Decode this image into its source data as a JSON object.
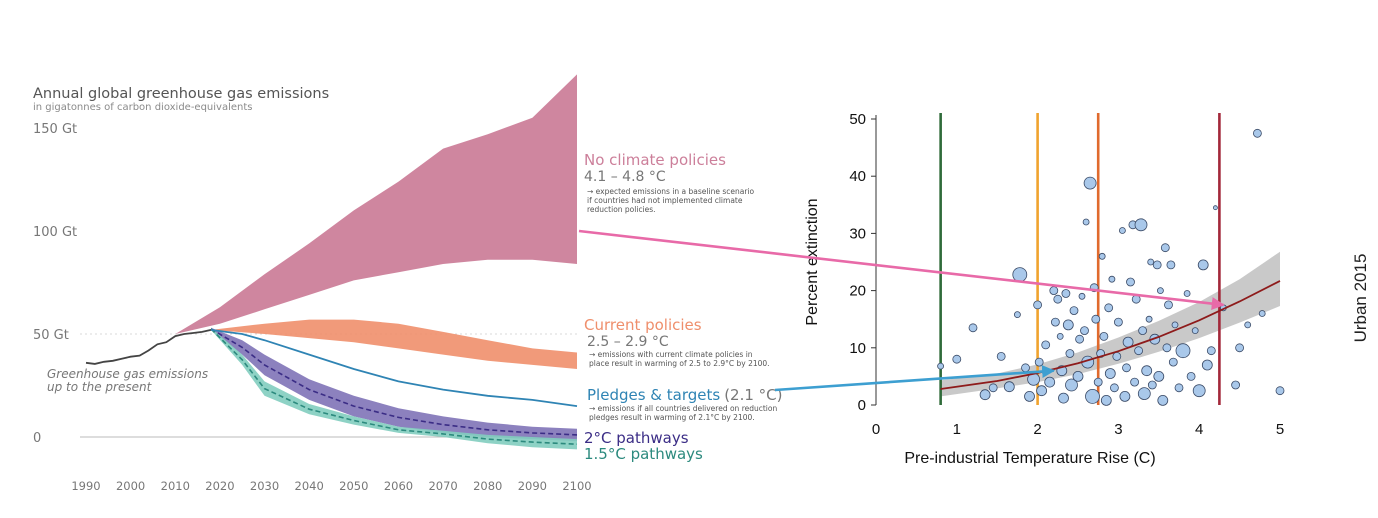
{
  "colors": {
    "no_policy": "#cc7f9a",
    "current": "#ef8f6c",
    "pledges": "#2f84b4",
    "two_c": "#7f73b7",
    "two_c_line": "#3b2d86",
    "one_five": "#82cdbf",
    "one_five_line": "#2c8a7e",
    "history": "#444444",
    "arrow_pink": "#e86aa8",
    "arrow_blue": "#3d9fd1",
    "ext_curve": "#8e1b1b",
    "ext_band": "#bfbfbf",
    "marker_fill": "#a9c8ea",
    "marker_stroke": "#3a4a66",
    "vline_green": "#2f6b3a",
    "vline_orange": "#f0a32e",
    "vline_red_orange": "#e06a2d",
    "vline_dark_red": "#a3283a"
  },
  "chart_data": [
    {
      "type": "area",
      "title": "Annual global greenhouse gas emissions",
      "subtitle": "in gigatonnes of carbon dioxide-equivalents",
      "y_ticks": [
        {
          "value": 150,
          "label": "150 Gt"
        },
        {
          "value": 100,
          "label": "100 Gt"
        },
        {
          "value": 50,
          "label": "50 Gt"
        },
        {
          "value": 0,
          "label": "0"
        }
      ],
      "x_ticks": [
        "1990",
        "2000",
        "2010",
        "2020",
        "2030",
        "2040",
        "2050",
        "2060",
        "2070",
        "2080",
        "2090",
        "2100"
      ],
      "xlim": [
        1990,
        2100
      ],
      "ylim": [
        0,
        150
      ],
      "history": {
        "label_line1": "Greenhouse gas emissions",
        "label_line2": "up to the present",
        "x": [
          1990,
          1992,
          1994,
          1996,
          1998,
          2000,
          2002,
          2004,
          2006,
          2008,
          2010,
          2012,
          2014,
          2016,
          2018
        ],
        "y": [
          36,
          35.5,
          36.5,
          37,
          38,
          39,
          39.5,
          42,
          45,
          46,
          49,
          50,
          50.5,
          51,
          52
        ]
      },
      "bands": [
        {
          "key": "no_policy",
          "label": "No climate policies",
          "range": "4.1 – 4.8 °C",
          "note": [
            "→ expected emissions in a baseline scenario",
            "if countries had not implemented climate",
            "reduction policies."
          ],
          "x": [
            2010,
            2020,
            2030,
            2040,
            2050,
            2060,
            2070,
            2080,
            2090,
            2100
          ],
          "lower": [
            50,
            55,
            62,
            69,
            76,
            80,
            84,
            86,
            86,
            84
          ],
          "upper": [
            50,
            63,
            79,
            94,
            110,
            124,
            140,
            147,
            155,
            176
          ]
        },
        {
          "key": "current",
          "label": "Current policies",
          "range": "2.5 – 2.9 °C",
          "note": [
            "→ emissions with current climate policies in",
            "place result in warming of 2.5 to 2.9°C by 2100."
          ],
          "x": [
            2018,
            2030,
            2040,
            2050,
            2060,
            2070,
            2080,
            2090,
            2100
          ],
          "lower": [
            52,
            50,
            48,
            46,
            43,
            40,
            37,
            35,
            33
          ],
          "upper": [
            52,
            55,
            57,
            57,
            55,
            51,
            47,
            43,
            41
          ]
        },
        {
          "key": "two_c",
          "label": "2°C pathways",
          "x": [
            2018,
            2025,
            2030,
            2040,
            2050,
            2060,
            2070,
            2080,
            2090,
            2100
          ],
          "lower": [
            52,
            40,
            30,
            18,
            10,
            5,
            2,
            0,
            -1,
            -2
          ],
          "upper": [
            53,
            47,
            40,
            28,
            20,
            14,
            10,
            7,
            5,
            4
          ],
          "mid": [
            52.5,
            43.5,
            35,
            23,
            15,
            9.5,
            6,
            3.5,
            2,
            1
          ]
        },
        {
          "key": "one_five",
          "label": "1.5°C pathways",
          "x": [
            2018,
            2025,
            2030,
            2040,
            2050,
            2060,
            2070,
            2080,
            2090,
            2100
          ],
          "lower": [
            52,
            35,
            20,
            11,
            6,
            2,
            0,
            -3,
            -5,
            -6
          ],
          "upper": [
            53,
            40,
            27,
            16,
            10,
            5,
            3,
            1,
            0,
            -1
          ],
          "mid": [
            52.5,
            37.5,
            23.5,
            13.5,
            8,
            3.5,
            1.5,
            -1,
            -2.5,
            -3.5
          ]
        }
      ],
      "pledges": {
        "label": "Pledges & targets",
        "range": "(2.1 °C)",
        "note": [
          "→ emissions if all countries delivered on reduction",
          "pledges result in warming of 2.1°C by 2100."
        ],
        "x": [
          2018,
          2025,
          2030,
          2040,
          2050,
          2060,
          2070,
          2080,
          2090,
          2100
        ],
        "y": [
          52,
          50,
          47,
          40,
          33,
          27,
          23,
          20,
          18,
          15
        ]
      }
    },
    {
      "type": "scatter",
      "xlabel": "Pre-industrial Temperature Rise (C)",
      "ylabel": "Percent extinction",
      "xlim": [
        0,
        5
      ],
      "ylim": [
        0,
        50
      ],
      "x_ticks": [
        "0",
        "1",
        "2",
        "3",
        "4",
        "5"
      ],
      "y_ticks": [
        "0",
        "10",
        "20",
        "30",
        "40",
        "50"
      ],
      "vlines": [
        {
          "x": 0.8,
          "key": "vline_green"
        },
        {
          "x": 2.0,
          "key": "vline_orange"
        },
        {
          "x": 2.75,
          "key": "vline_red_orange"
        },
        {
          "x": 4.25,
          "key": "vline_dark_red"
        }
      ],
      "curve": {
        "x": [
          0.8,
          1.5,
          2.0,
          2.5,
          3.0,
          3.5,
          4.0,
          4.5,
          5.0
        ],
        "y": [
          2.8,
          4.2,
          5.6,
          7.3,
          9.4,
          11.9,
          14.8,
          18.1,
          21.7
        ],
        "band_lower": [
          1.5,
          2.9,
          4.0,
          5.4,
          7.2,
          9.3,
          11.7,
          14.4,
          17.3
        ],
        "band_upper": [
          4.3,
          5.5,
          7.1,
          9.2,
          11.8,
          14.7,
          18.0,
          22.0,
          26.8
        ]
      },
      "points": [
        {
          "x": 0.8,
          "y": 6.8,
          "s": 3
        },
        {
          "x": 1.0,
          "y": 8.0,
          "s": 4
        },
        {
          "x": 1.2,
          "y": 13.5,
          "s": 4
        },
        {
          "x": 1.35,
          "y": 1.8,
          "s": 5
        },
        {
          "x": 1.45,
          "y": 3.0,
          "s": 4
        },
        {
          "x": 1.55,
          "y": 8.5,
          "s": 4
        },
        {
          "x": 1.65,
          "y": 3.2,
          "s": 5
        },
        {
          "x": 1.75,
          "y": 15.8,
          "s": 3
        },
        {
          "x": 1.78,
          "y": 22.8,
          "s": 7
        },
        {
          "x": 1.85,
          "y": 6.5,
          "s": 4
        },
        {
          "x": 1.9,
          "y": 1.5,
          "s": 5
        },
        {
          "x": 1.95,
          "y": 4.5,
          "s": 6
        },
        {
          "x": 2.0,
          "y": 17.5,
          "s": 4
        },
        {
          "x": 2.02,
          "y": 7.5,
          "s": 4
        },
        {
          "x": 2.05,
          "y": 2.5,
          "s": 5
        },
        {
          "x": 2.1,
          "y": 10.5,
          "s": 4
        },
        {
          "x": 2.15,
          "y": 4.0,
          "s": 5
        },
        {
          "x": 2.2,
          "y": 20.0,
          "s": 4
        },
        {
          "x": 2.22,
          "y": 14.5,
          "s": 4
        },
        {
          "x": 2.25,
          "y": 18.5,
          "s": 4
        },
        {
          "x": 2.28,
          "y": 12.0,
          "s": 3
        },
        {
          "x": 2.3,
          "y": 6.0,
          "s": 5
        },
        {
          "x": 2.32,
          "y": 1.2,
          "s": 5
        },
        {
          "x": 2.35,
          "y": 19.5,
          "s": 4
        },
        {
          "x": 2.38,
          "y": 14.0,
          "s": 5
        },
        {
          "x": 2.4,
          "y": 9.0,
          "s": 4
        },
        {
          "x": 2.42,
          "y": 3.5,
          "s": 6
        },
        {
          "x": 2.45,
          "y": 16.5,
          "s": 4
        },
        {
          "x": 2.5,
          "y": 5.0,
          "s": 5
        },
        {
          "x": 2.52,
          "y": 11.5,
          "s": 4
        },
        {
          "x": 2.55,
          "y": 19.0,
          "s": 3
        },
        {
          "x": 2.58,
          "y": 13.0,
          "s": 4
        },
        {
          "x": 2.6,
          "y": 32.0,
          "s": 3
        },
        {
          "x": 2.62,
          "y": 7.5,
          "s": 6
        },
        {
          "x": 2.65,
          "y": 38.8,
          "s": 6
        },
        {
          "x": 2.68,
          "y": 1.5,
          "s": 7
        },
        {
          "x": 2.7,
          "y": 20.5,
          "s": 4
        },
        {
          "x": 2.72,
          "y": 15.0,
          "s": 4
        },
        {
          "x": 2.75,
          "y": 4.0,
          "s": 4
        },
        {
          "x": 2.78,
          "y": 9.0,
          "s": 4
        },
        {
          "x": 2.8,
          "y": 26.0,
          "s": 3
        },
        {
          "x": 2.82,
          "y": 12.0,
          "s": 4
        },
        {
          "x": 2.85,
          "y": 0.8,
          "s": 5
        },
        {
          "x": 2.88,
          "y": 17.0,
          "s": 4
        },
        {
          "x": 2.9,
          "y": 5.5,
          "s": 5
        },
        {
          "x": 2.92,
          "y": 22.0,
          "s": 3
        },
        {
          "x": 2.95,
          "y": 3.0,
          "s": 4
        },
        {
          "x": 2.98,
          "y": 8.5,
          "s": 4
        },
        {
          "x": 3.0,
          "y": 14.5,
          "s": 4
        },
        {
          "x": 3.05,
          "y": 30.5,
          "s": 3
        },
        {
          "x": 3.08,
          "y": 1.5,
          "s": 5
        },
        {
          "x": 3.1,
          "y": 6.5,
          "s": 4
        },
        {
          "x": 3.12,
          "y": 11.0,
          "s": 5
        },
        {
          "x": 3.15,
          "y": 21.5,
          "s": 4
        },
        {
          "x": 3.18,
          "y": 31.5,
          "s": 4
        },
        {
          "x": 3.2,
          "y": 4.0,
          "s": 4
        },
        {
          "x": 3.22,
          "y": 18.5,
          "s": 4
        },
        {
          "x": 3.25,
          "y": 9.5,
          "s": 4
        },
        {
          "x": 3.28,
          "y": 31.5,
          "s": 6
        },
        {
          "x": 3.3,
          "y": 13.0,
          "s": 4
        },
        {
          "x": 3.32,
          "y": 2.0,
          "s": 6
        },
        {
          "x": 3.35,
          "y": 6.0,
          "s": 5
        },
        {
          "x": 3.38,
          "y": 15.0,
          "s": 3
        },
        {
          "x": 3.4,
          "y": 25.0,
          "s": 3
        },
        {
          "x": 3.42,
          "y": 3.5,
          "s": 4
        },
        {
          "x": 3.45,
          "y": 11.5,
          "s": 5
        },
        {
          "x": 3.48,
          "y": 24.5,
          "s": 4
        },
        {
          "x": 3.5,
          "y": 5.0,
          "s": 5
        },
        {
          "x": 3.52,
          "y": 20.0,
          "s": 3
        },
        {
          "x": 3.55,
          "y": 0.8,
          "s": 5
        },
        {
          "x": 3.58,
          "y": 27.5,
          "s": 4
        },
        {
          "x": 3.6,
          "y": 10.0,
          "s": 4
        },
        {
          "x": 3.62,
          "y": 17.5,
          "s": 4
        },
        {
          "x": 3.65,
          "y": 24.5,
          "s": 4
        },
        {
          "x": 3.68,
          "y": 7.5,
          "s": 4
        },
        {
          "x": 3.7,
          "y": 14.0,
          "s": 3
        },
        {
          "x": 3.75,
          "y": 3.0,
          "s": 4
        },
        {
          "x": 3.8,
          "y": 9.5,
          "s": 7
        },
        {
          "x": 3.85,
          "y": 19.5,
          "s": 3
        },
        {
          "x": 3.9,
          "y": 5.0,
          "s": 4
        },
        {
          "x": 3.95,
          "y": 13.0,
          "s": 3
        },
        {
          "x": 4.0,
          "y": 2.5,
          "s": 6
        },
        {
          "x": 4.05,
          "y": 24.5,
          "s": 5
        },
        {
          "x": 4.1,
          "y": 7.0,
          "s": 5
        },
        {
          "x": 4.15,
          "y": 9.5,
          "s": 4
        },
        {
          "x": 4.2,
          "y": 34.5,
          "s": 2
        },
        {
          "x": 4.3,
          "y": 17.0,
          "s": 3
        },
        {
          "x": 4.45,
          "y": 3.5,
          "s": 4
        },
        {
          "x": 4.5,
          "y": 10.0,
          "s": 4
        },
        {
          "x": 4.6,
          "y": 14.0,
          "s": 3
        },
        {
          "x": 4.72,
          "y": 47.5,
          "s": 4
        },
        {
          "x": 4.78,
          "y": 16.0,
          "s": 3
        },
        {
          "x": 5.0,
          "y": 2.5,
          "s": 4
        }
      ]
    }
  ],
  "side_label": "Urban 2015"
}
